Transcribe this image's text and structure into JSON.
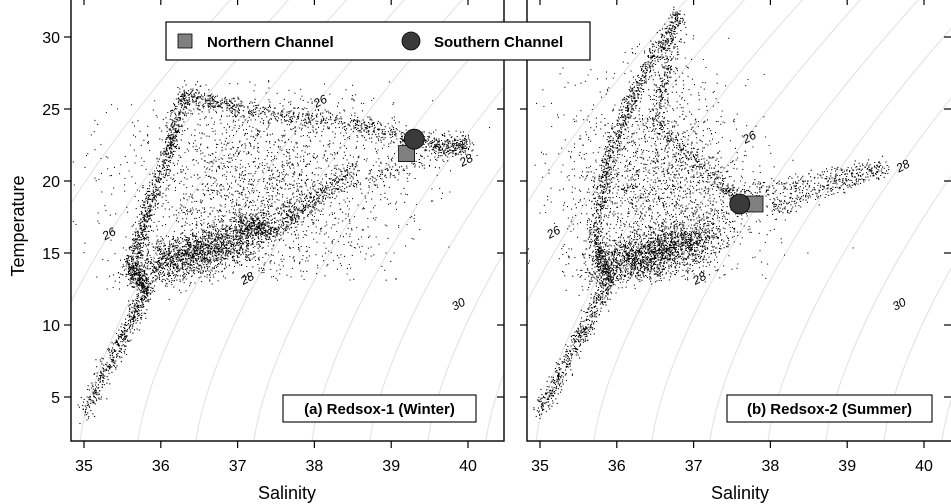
{
  "legend": {
    "items": [
      {
        "label": "Northern Channel",
        "marker": "square",
        "color": "#808080"
      },
      {
        "label": "Southern Channel",
        "marker": "circle",
        "color": "#3a3a3a"
      }
    ],
    "placement": "top-left"
  },
  "colors": {
    "points": "#000000",
    "contours": "#e0e0e0",
    "axes": "#000000"
  },
  "chart_data": [
    {
      "type": "scatter",
      "panel_label": "(a) Redsox-1 (Winter)",
      "xlabel": "Salinity",
      "ylabel": "Temperature",
      "xlim": [
        34.9,
        40.5
      ],
      "ylim": [
        2.0,
        32.0
      ],
      "xticks": [
        35,
        36,
        37,
        38,
        39,
        40
      ],
      "yticks": [
        5,
        10,
        15,
        20,
        25,
        30
      ],
      "grid": false,
      "density_contours": [
        {
          "label": "26",
          "label_s": 35.35,
          "label_t": 16.1
        },
        {
          "label": "26",
          "label_s": 38.1,
          "label_t": 25.3
        },
        {
          "label": "28",
          "label_s": 37.15,
          "label_t": 13.0
        },
        {
          "label": "28",
          "label_s": 40.0,
          "label_t": 21.2
        },
        {
          "label": "30",
          "label_s": 39.9,
          "label_t": 11.2
        }
      ],
      "markers": [
        {
          "series": "Northern Channel",
          "salinity": 39.2,
          "temperature": 21.9
        },
        {
          "series": "Southern Channel",
          "salinity": 39.3,
          "temperature": 22.9
        }
      ],
      "scatter_envelope": [
        {
          "s": 35.0,
          "t": 4.0
        },
        {
          "s": 35.5,
          "t": 9.0
        },
        {
          "s": 35.8,
          "t": 12.5
        },
        {
          "s": 35.6,
          "t": 14.0
        },
        {
          "s": 35.8,
          "t": 17.5
        },
        {
          "s": 36.1,
          "t": 22.0
        },
        {
          "s": 36.3,
          "t": 26.0
        },
        {
          "s": 37.0,
          "t": 25.0
        },
        {
          "s": 38.5,
          "t": 24.0
        },
        {
          "s": 39.5,
          "t": 22.5
        },
        {
          "s": 40.0,
          "t": 22.5
        },
        {
          "s": 37.0,
          "t": 17.0
        },
        {
          "s": 37.5,
          "t": 16.5
        },
        {
          "s": 38.5,
          "t": 21.0
        }
      ]
    },
    {
      "type": "scatter",
      "panel_label": "(b) Redsox-2 (Summer)",
      "xlabel": "Salinity",
      "ylabel": "",
      "xlim": [
        34.9,
        40.5
      ],
      "ylim": [
        2.0,
        32.0
      ],
      "xticks": [
        35,
        36,
        37,
        38,
        39,
        40
      ],
      "yticks": [
        5,
        10,
        15,
        20,
        25,
        30
      ],
      "grid": false,
      "density_contours": [
        {
          "label": "26",
          "label_s": 35.2,
          "label_t": 16.2
        },
        {
          "label": "26",
          "label_s": 37.75,
          "label_t": 22.8
        },
        {
          "label": "28",
          "label_s": 37.1,
          "label_t": 13.0
        },
        {
          "label": "28",
          "label_s": 39.75,
          "label_t": 20.8
        },
        {
          "label": "30",
          "label_s": 39.7,
          "label_t": 11.2
        }
      ],
      "markers": [
        {
          "series": "Northern Channel",
          "salinity": 37.8,
          "temperature": 18.4
        },
        {
          "series": "Southern Channel",
          "salinity": 37.6,
          "temperature": 18.4
        }
      ],
      "scatter_envelope": [
        {
          "s": 35.0,
          "t": 4.0
        },
        {
          "s": 35.5,
          "t": 9.0
        },
        {
          "s": 35.9,
          "t": 13.0
        },
        {
          "s": 35.7,
          "t": 16.0
        },
        {
          "s": 35.9,
          "t": 22.0
        },
        {
          "s": 36.3,
          "t": 27.0
        },
        {
          "s": 36.8,
          "t": 31.5
        },
        {
          "s": 36.5,
          "t": 24.0
        },
        {
          "s": 37.5,
          "t": 19.0
        },
        {
          "s": 39.5,
          "t": 21.0
        },
        {
          "s": 38.0,
          "t": 18.0
        }
      ]
    }
  ]
}
